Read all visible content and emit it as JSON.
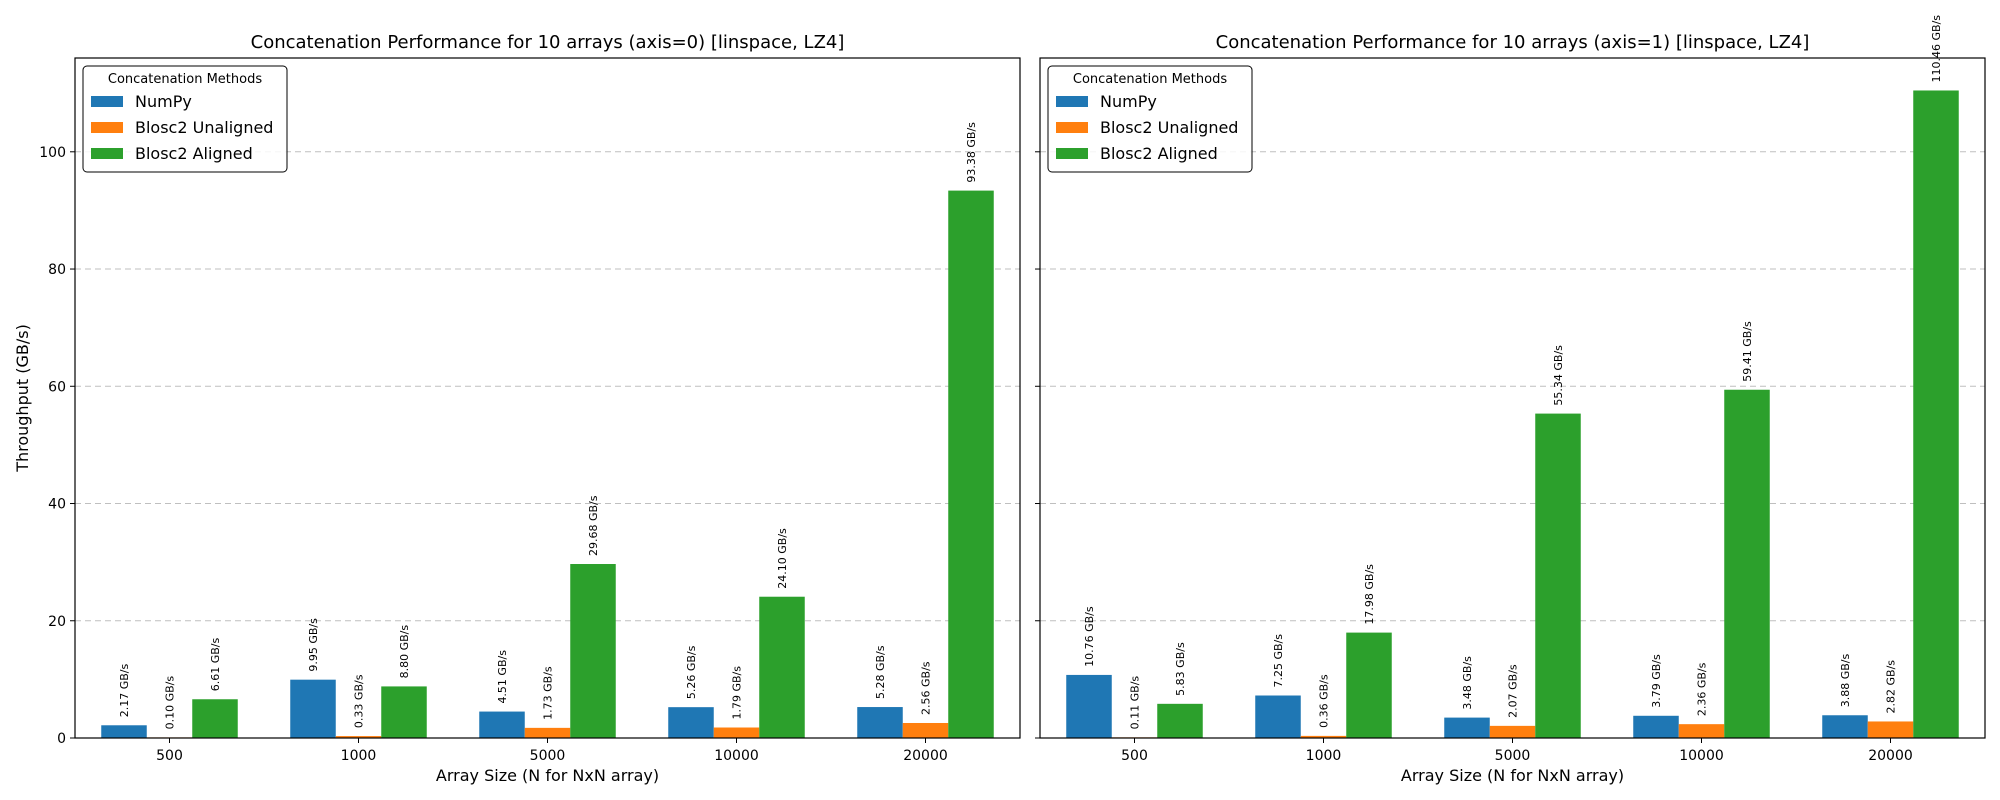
{
  "chart_data": [
    {
      "type": "bar",
      "title": "Concatenation Performance for 10 arrays (axis=0) [linspace, LZ4]",
      "xlabel": "Array Size (N for NxN array)",
      "ylabel": "Throughput (GB/s)",
      "categories": [
        "500",
        "1000",
        "5000",
        "10000",
        "20000"
      ],
      "ylim": [
        0,
        116
      ],
      "yticks": [
        0,
        20,
        40,
        60,
        80,
        100
      ],
      "grid": true,
      "legend_title": "Concatenation Methods",
      "legend_position": "top-left",
      "series": [
        {
          "name": "NumPy",
          "color": "#1f77b4",
          "values": [
            2.17,
            9.95,
            4.51,
            5.26,
            5.28
          ],
          "labels": [
            "2.17 GB/s",
            "9.95 GB/s",
            "4.51 GB/s",
            "5.26 GB/s",
            "5.28 GB/s"
          ]
        },
        {
          "name": "Blosc2 Unaligned",
          "color": "#ff7f0e",
          "values": [
            0.1,
            0.33,
            1.73,
            1.79,
            2.56
          ],
          "labels": [
            "0.10 GB/s",
            "0.33 GB/s",
            "1.73 GB/s",
            "1.79 GB/s",
            "2.56 GB/s"
          ]
        },
        {
          "name": "Blosc2 Aligned",
          "color": "#2ca02c",
          "values": [
            6.61,
            8.8,
            29.68,
            24.1,
            93.38
          ],
          "labels": [
            "6.61 GB/s",
            "8.80 GB/s",
            "29.68 GB/s",
            "24.10 GB/s",
            "93.38 GB/s"
          ]
        }
      ]
    },
    {
      "type": "bar",
      "title": "Concatenation Performance for 10 arrays (axis=1) [linspace, LZ4]",
      "xlabel": "Array Size (N for NxN array)",
      "ylabel": "",
      "categories": [
        "500",
        "1000",
        "5000",
        "10000",
        "20000"
      ],
      "ylim": [
        0,
        116
      ],
      "yticks": [
        0,
        20,
        40,
        60,
        80,
        100
      ],
      "grid": true,
      "legend_title": "Concatenation Methods",
      "legend_position": "top-left",
      "series": [
        {
          "name": "NumPy",
          "color": "#1f77b4",
          "values": [
            10.76,
            7.25,
            3.48,
            3.79,
            3.88
          ],
          "labels": [
            "10.76 GB/s",
            "7.25 GB/s",
            "3.48 GB/s",
            "3.79 GB/s",
            "3.88 GB/s"
          ]
        },
        {
          "name": "Blosc2 Unaligned",
          "color": "#ff7f0e",
          "values": [
            0.11,
            0.36,
            2.07,
            2.36,
            2.82
          ],
          "labels": [
            "0.11 GB/s",
            "0.36 GB/s",
            "2.07 GB/s",
            "2.36 GB/s",
            "2.82 GB/s"
          ]
        },
        {
          "name": "Blosc2 Aligned",
          "color": "#2ca02c",
          "values": [
            5.83,
            17.98,
            55.34,
            59.41,
            110.46
          ],
          "labels": [
            "5.83 GB/s",
            "17.98 GB/s",
            "55.34 GB/s",
            "59.41 GB/s",
            "110.46 GB/s"
          ]
        }
      ]
    }
  ]
}
